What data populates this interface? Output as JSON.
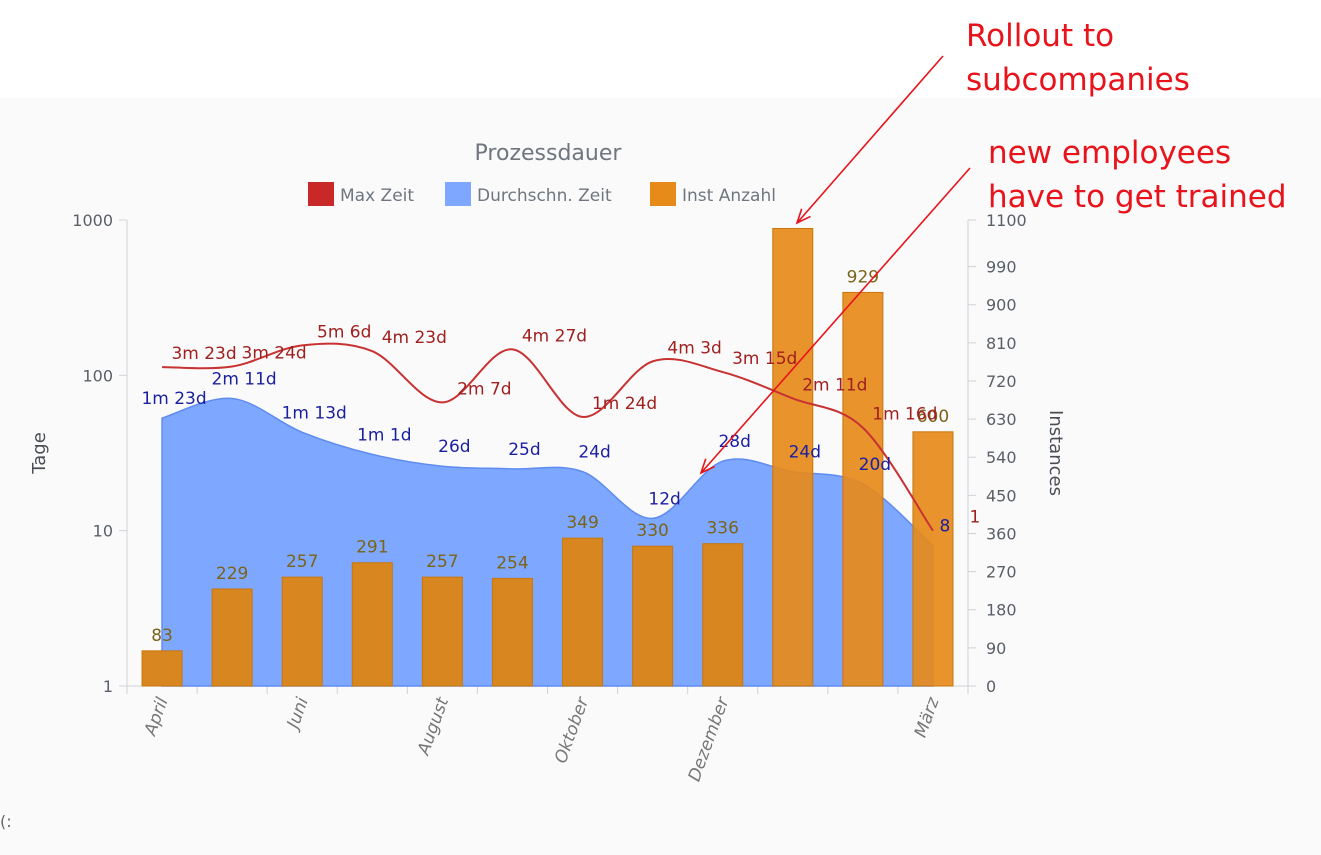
{
  "chart_data": {
    "type": "bar",
    "title": "Prozessdauer",
    "legend": [
      {
        "name": "Max Zeit",
        "color": "#c82828"
      },
      {
        "name": "Durchschn. Zeit",
        "color": "#7ea7ff"
      },
      {
        "name": "Inst Anzahl",
        "color": "#e68a1a"
      }
    ],
    "legend_position": "top-center",
    "grid": false,
    "x_tick_labels": [
      "April",
      "Juni",
      "August",
      "Oktober",
      "Dezember",
      "März"
    ],
    "y_left": {
      "label": "Tage",
      "scale": "log",
      "range": [
        1,
        1000
      ],
      "ticks": [
        "1",
        "10",
        "100",
        "1000"
      ]
    },
    "y_right": {
      "label": "Instances",
      "range": [
        0,
        1100
      ],
      "ticks": [
        "0",
        "90",
        "180",
        "270",
        "360",
        "450",
        "540",
        "630",
        "720",
        "810",
        "900",
        "990",
        "1100"
      ]
    },
    "series": [
      {
        "name": "Inst Anzahl",
        "type": "bar",
        "axis": "right",
        "color": "#d8861f",
        "values": [
          83,
          229,
          257,
          291,
          257,
          254,
          349,
          330,
          336,
          1080,
          929,
          600
        ],
        "labels": [
          "83",
          "229",
          "257",
          "291",
          "257",
          "254",
          "349",
          "330",
          "336",
          "",
          "929",
          "600"
        ]
      },
      {
        "name": "Durchschn. Zeit",
        "type": "area",
        "axis": "left",
        "color": "#7ea7ff",
        "values": [
          53,
          71,
          43,
          31,
          26,
          25,
          24,
          12,
          28,
          24,
          20,
          8
        ],
        "labels": [
          "1m 23d",
          "2m 11d",
          "1m 13d",
          "1m 1d",
          "26d",
          "25d",
          "24d",
          "12d",
          "28d",
          "24d",
          "20d",
          "8"
        ]
      },
      {
        "name": "Max Zeit",
        "type": "line",
        "axis": "left",
        "color": "#c83232",
        "values": [
          113,
          114,
          156,
          143,
          67,
          147,
          54,
          123,
          105,
          71,
          46,
          10
        ],
        "labels": [
          "3m 23d",
          "3m 24d",
          "5m 6d",
          "4m 23d",
          "2m 7d",
          "4m 27d",
          "1m 24d",
          "4m 3d",
          "3m 15d",
          "2m 11d",
          "1m 16d",
          "1"
        ]
      }
    ]
  },
  "annotations": [
    {
      "text": "Rollout to\nsubcompanies",
      "color": "#e8131b"
    },
    {
      "text": "new employees\nhave to get trained",
      "color": "#e8131b"
    }
  ],
  "stray_text": "(:"
}
